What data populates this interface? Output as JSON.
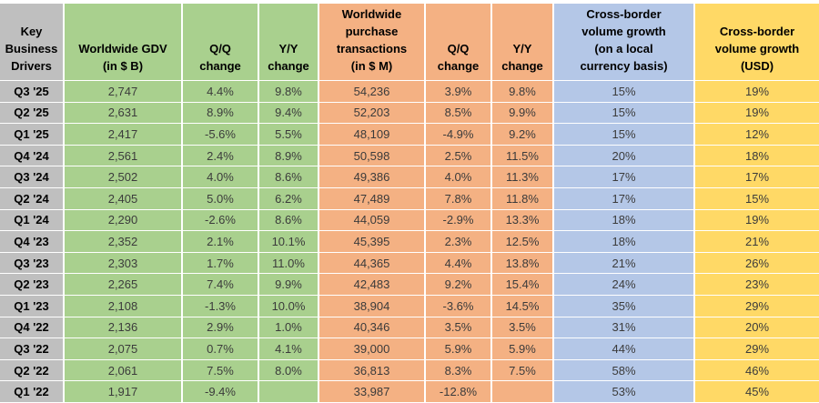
{
  "colors": {
    "gray": "#BFBFBF",
    "green": "#A9D08E",
    "orange": "#F4B183",
    "blue": "#B4C7E7",
    "yellow": "#FFD966",
    "gridline": "#FFFFFF",
    "header_text": "#000000",
    "data_text": "#3B3B3B"
  },
  "table": {
    "header_labels": [
      "Key\nBusiness\nDrivers",
      "Worldwide GDV\n(in $ B)",
      "Q/Q\nchange",
      "Y/Y\nchange",
      "Worldwide\npurchase\ntransactions\n(in $ M)",
      "Q/Q\nchange",
      "Y/Y\nchange",
      "Cross-border\nvolume growth\n(on a local\ncurrency basis)",
      "Cross-border\nvolume growth\n(USD)"
    ]
  },
  "chart_data": {
    "type": "table",
    "title": "Key Business Drivers",
    "columns": [
      "Key Business Drivers",
      "Worldwide GDV (in $ B)",
      "Q/Q change",
      "Y/Y change",
      "Worldwide purchase transactions (in $ M)",
      "Q/Q change",
      "Y/Y change",
      "Cross-border volume growth (on a local currency basis)",
      "Cross-border volume growth (USD)"
    ],
    "rows": [
      [
        "Q3 '25",
        "2,747",
        "4.4%",
        "9.8%",
        "54,236",
        "3.9%",
        "9.8%",
        "15%",
        "19%"
      ],
      [
        "Q2 '25",
        "2,631",
        "8.9%",
        "9.4%",
        "52,203",
        "8.5%",
        "9.9%",
        "15%",
        "19%"
      ],
      [
        "Q1 '25",
        "2,417",
        "-5.6%",
        "5.5%",
        "48,109",
        "-4.9%",
        "9.2%",
        "15%",
        "12%"
      ],
      [
        "Q4 '24",
        "2,561",
        "2.4%",
        "8.9%",
        "50,598",
        "2.5%",
        "11.5%",
        "20%",
        "18%"
      ],
      [
        "Q3 '24",
        "2,502",
        "4.0%",
        "8.6%",
        "49,386",
        "4.0%",
        "11.3%",
        "17%",
        "17%"
      ],
      [
        "Q2 '24",
        "2,405",
        "5.0%",
        "6.2%",
        "47,489",
        "7.8%",
        "11.8%",
        "17%",
        "15%"
      ],
      [
        "Q1 '24",
        "2,290",
        "-2.6%",
        "8.6%",
        "44,059",
        "-2.9%",
        "13.3%",
        "18%",
        "19%"
      ],
      [
        "Q4 '23",
        "2,352",
        "2.1%",
        "10.1%",
        "45,395",
        "2.3%",
        "12.5%",
        "18%",
        "21%"
      ],
      [
        "Q3 '23",
        "2,303",
        "1.7%",
        "11.0%",
        "44,365",
        "4.4%",
        "13.8%",
        "21%",
        "26%"
      ],
      [
        "Q2 '23",
        "2,265",
        "7.4%",
        "9.9%",
        "42,483",
        "9.2%",
        "15.4%",
        "24%",
        "23%"
      ],
      [
        "Q1 '23",
        "2,108",
        "-1.3%",
        "10.0%",
        "38,904",
        "-3.6%",
        "14.5%",
        "35%",
        "29%"
      ],
      [
        "Q4 '22",
        "2,136",
        "2.9%",
        "1.0%",
        "40,346",
        "3.5%",
        "3.5%",
        "31%",
        "20%"
      ],
      [
        "Q3 '22",
        "2,075",
        "0.7%",
        "4.1%",
        "39,000",
        "5.9%",
        "5.9%",
        "44%",
        "29%"
      ],
      [
        "Q2 '22",
        "2,061",
        "7.5%",
        "8.0%",
        "36,813",
        "8.3%",
        "7.5%",
        "58%",
        "46%"
      ],
      [
        "Q1 '22",
        "1,917",
        "-9.4%",
        "",
        "33,987",
        "-12.8%",
        "",
        "53%",
        "45%"
      ]
    ]
  }
}
